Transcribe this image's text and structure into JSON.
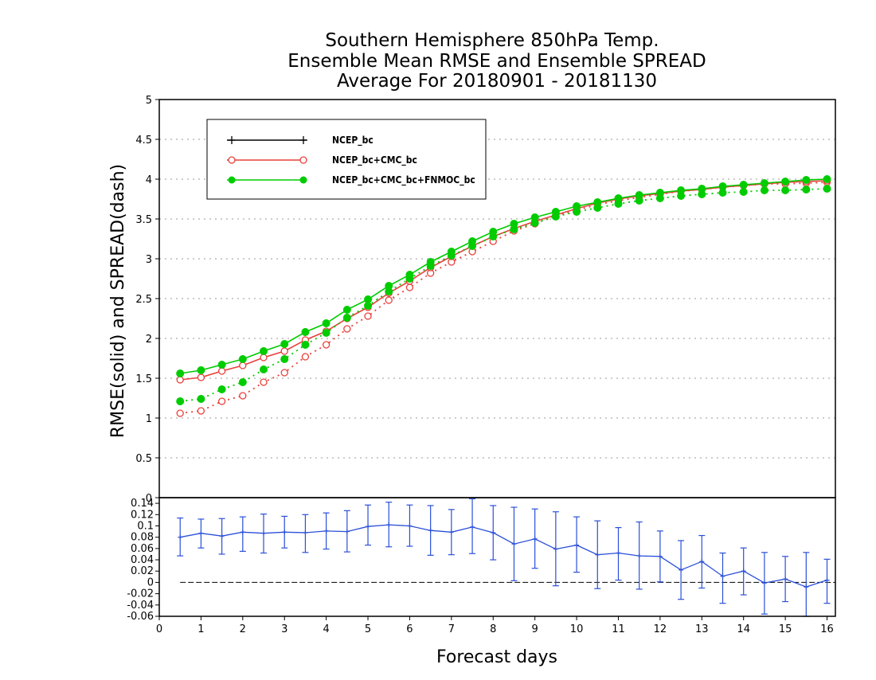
{
  "chart_data": [
    {
      "panel": "upper",
      "type": "line",
      "title": [
        "Southern Hemisphere 850hPa Temp.",
        "Ensemble Mean RMSE and Ensemble SPREAD",
        "Average For 20180901 - 20181130"
      ],
      "ylabel": "RMSE(solid) and SPREAD(dash)",
      "xlim": [
        0,
        16.2
      ],
      "ylim": [
        0,
        5
      ],
      "yticks": [
        "0",
        "0.5",
        "1",
        "1.5",
        "2",
        "2.5",
        "3",
        "3.5",
        "4",
        "4.5",
        "5"
      ],
      "grid": true,
      "legend_position": "top-left",
      "x": [
        0.5,
        1,
        1.5,
        2,
        2.5,
        3,
        3.5,
        4,
        4.5,
        5,
        5.5,
        6,
        6.5,
        7,
        7.5,
        8,
        8.5,
        9,
        9.5,
        10,
        10.5,
        11,
        11.5,
        12,
        12.5,
        13,
        13.5,
        14,
        14.5,
        15,
        15.5,
        16
      ],
      "series": [
        {
          "name": "NCEP_bc",
          "color": "#000000",
          "marker": "plus",
          "rmse": [],
          "spread": []
        },
        {
          "name": "NCEP_bc+CMC_bc",
          "color": "#e8413c",
          "marker": "open-circle",
          "rmse": [
            1.48,
            1.51,
            1.59,
            1.66,
            1.76,
            1.84,
            1.98,
            2.09,
            2.25,
            2.39,
            2.57,
            2.72,
            2.89,
            3.03,
            3.16,
            3.28,
            3.38,
            3.47,
            3.55,
            3.63,
            3.7,
            3.75,
            3.79,
            3.82,
            3.85,
            3.87,
            3.9,
            3.92,
            3.94,
            3.96,
            3.97,
            3.98
          ],
          "spread": [
            1.06,
            1.09,
            1.21,
            1.28,
            1.45,
            1.57,
            1.77,
            1.92,
            2.12,
            2.28,
            2.48,
            2.64,
            2.82,
            2.96,
            3.09,
            3.22,
            3.35,
            3.44,
            3.54,
            3.61,
            3.68,
            3.73,
            3.77,
            3.81,
            3.85,
            3.87,
            3.9,
            3.92,
            3.94,
            3.94,
            3.95,
            3.96
          ]
        },
        {
          "name": "NCEP_bc+CMC_bc+FNMOC_bc",
          "color": "#00cc00",
          "marker": "filled-circle",
          "rmse": [
            1.56,
            1.6,
            1.67,
            1.74,
            1.84,
            1.93,
            2.08,
            2.19,
            2.36,
            2.49,
            2.66,
            2.8,
            2.96,
            3.09,
            3.22,
            3.34,
            3.44,
            3.52,
            3.59,
            3.66,
            3.71,
            3.76,
            3.8,
            3.83,
            3.86,
            3.88,
            3.91,
            3.93,
            3.95,
            3.97,
            3.99,
            4.0
          ],
          "spread": [
            1.21,
            1.24,
            1.36,
            1.45,
            1.61,
            1.74,
            1.92,
            2.07,
            2.26,
            2.41,
            2.59,
            2.75,
            2.91,
            3.04,
            3.16,
            3.28,
            3.37,
            3.45,
            3.53,
            3.59,
            3.64,
            3.69,
            3.73,
            3.76,
            3.79,
            3.81,
            3.83,
            3.84,
            3.86,
            3.86,
            3.87,
            3.88
          ]
        }
      ]
    },
    {
      "panel": "lower",
      "type": "line",
      "xlabel": "Forecast days",
      "xlim": [
        0,
        16.2
      ],
      "ylim": [
        -0.06,
        0.15
      ],
      "xticks": [
        "0",
        "1",
        "2",
        "3",
        "4",
        "5",
        "6",
        "7",
        "8",
        "9",
        "10",
        "11",
        "12",
        "13",
        "14",
        "15",
        "16"
      ],
      "yticks": [
        "-0.06",
        "-0.04",
        "-0.02",
        "0",
        "0.02",
        "0.04",
        "0.06",
        "0.08",
        "0.1",
        "0.12",
        "0.14"
      ],
      "zero_line": true,
      "series": [
        {
          "color": "#2b4fd8",
          "x": [
            0.5,
            1,
            1.5,
            2,
            2.5,
            3,
            3.5,
            4,
            4.5,
            5,
            5.5,
            6,
            6.5,
            7,
            7.5,
            8,
            8.5,
            9,
            9.5,
            10,
            10.5,
            11,
            11.5,
            12,
            12.5,
            13,
            13.5,
            14,
            14.5,
            15,
            15.5,
            16
          ],
          "values": [
            0.08,
            0.087,
            0.082,
            0.089,
            0.087,
            0.089,
            0.088,
            0.091,
            0.09,
            0.099,
            0.102,
            0.1,
            0.092,
            0.089,
            0.098,
            0.088,
            0.068,
            0.077,
            0.059,
            0.066,
            0.049,
            0.052,
            0.047,
            0.046,
            0.022,
            0.037,
            0.011,
            0.02,
            -0.001,
            0.006,
            -0.008,
            0.004
          ],
          "error_low": [
            0.047,
            0.061,
            0.05,
            0.055,
            0.052,
            0.061,
            0.053,
            0.059,
            0.054,
            0.066,
            0.063,
            0.064,
            0.048,
            0.049,
            0.051,
            0.04,
            0.003,
            0.025,
            -0.006,
            0.018,
            -0.011,
            0.004,
            -0.012,
            0.001,
            -0.03,
            -0.01,
            -0.037,
            -0.022,
            -0.056,
            -0.034,
            -0.06,
            -0.037
          ],
          "error_high": [
            0.114,
            0.112,
            0.113,
            0.116,
            0.121,
            0.117,
            0.12,
            0.123,
            0.127,
            0.137,
            0.142,
            0.137,
            0.136,
            0.129,
            0.148,
            0.136,
            0.133,
            0.13,
            0.125,
            0.116,
            0.109,
            0.097,
            0.107,
            0.091,
            0.074,
            0.083,
            0.052,
            0.061,
            0.053,
            0.046,
            0.053,
            0.041
          ]
        }
      ]
    }
  ]
}
